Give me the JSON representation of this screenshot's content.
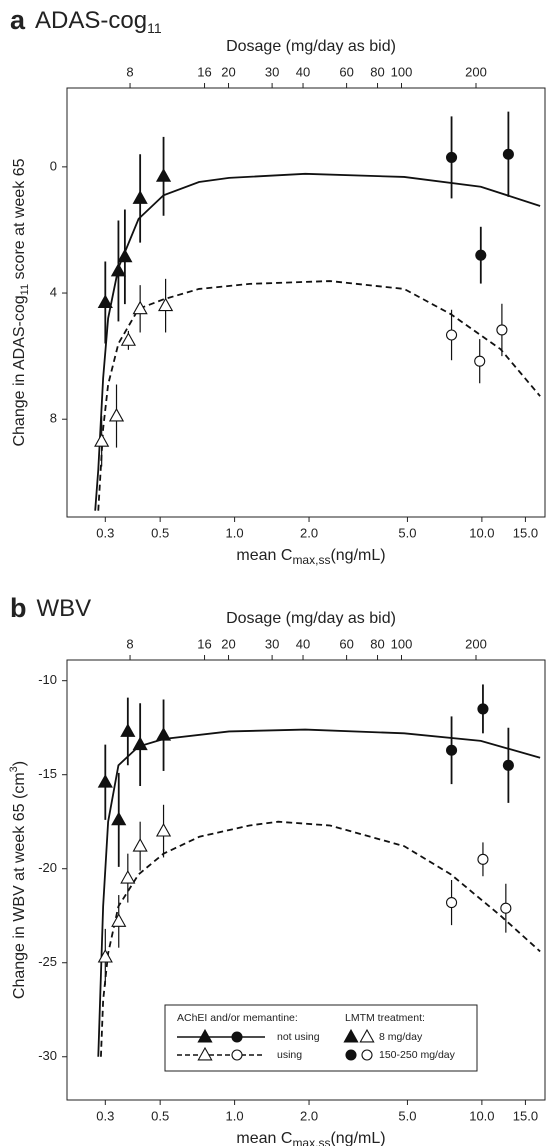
{
  "chart_data": [
    {
      "type": "scatter-curve",
      "panel": "a",
      "title": "ADAS-cog",
      "title_sub": "11",
      "ylabel": [
        "Change in ADAS-cog",
        "11",
        " score at  week 65"
      ],
      "xlabel": [
        "mean C",
        "max,ss",
        "(ng/mL)"
      ],
      "x2label": "Dosage (mg/day as bid)",
      "xscale": "log",
      "xlim": [
        0.21,
        18
      ],
      "xticks": [
        0.3,
        0.5,
        {
          "value": 1,
          "label": "1.0"
        },
        {
          "value": 2,
          "label": "2.0"
        },
        {
          "value": 5,
          "label": "5.0"
        },
        {
          "value": 10,
          "label": "10.0"
        },
        {
          "value": 15,
          "label": "15.0"
        }
      ],
      "x2scale": "log",
      "x2lim": [
        4.45,
        380
      ],
      "x2ticks": [
        8,
        16,
        20,
        30,
        40,
        60,
        80,
        100,
        200
      ],
      "ylim": [
        11.1,
        -2.5
      ],
      "yticks": [
        0,
        4,
        8
      ],
      "y_inverted": true,
      "series": [
        {
          "kind": "curve",
          "dashed": false,
          "x": [
            0.273,
            0.281,
            0.294,
            0.308,
            0.339,
            0.409,
            0.516,
            0.718,
            0.95,
            1.93,
            4.85,
            9.9,
            17.2
          ],
          "values": [
            10.9,
            9.6,
            6.7,
            4.8,
            3.2,
            1.65,
            0.9,
            0.48,
            0.35,
            0.22,
            0.32,
            0.63,
            1.24
          ]
        },
        {
          "kind": "curve",
          "dashed": true,
          "x": [
            0.281,
            0.294,
            0.308,
            0.339,
            0.409,
            0.516,
            0.718,
            1.15,
            2.43,
            4.85,
            7.49,
            11.9,
            17.2
          ],
          "values": [
            10.9,
            8.3,
            6.9,
            5.6,
            4.5,
            4.2,
            3.87,
            3.71,
            3.62,
            3.87,
            4.67,
            5.78,
            7.27
          ]
        },
        {
          "kind": "points",
          "marker": "triangle",
          "filled": true,
          "x": [
            0.3,
            0.339,
            0.36,
            0.415,
            0.516
          ],
          "values": [
            4.3,
            3.3,
            2.85,
            1.0,
            0.3
          ],
          "errors": [
            1.3,
            1.6,
            1.5,
            1.4,
            1.25
          ]
        },
        {
          "kind": "points",
          "marker": "circle",
          "filled": true,
          "x": [
            7.54,
            9.9,
            12.8
          ],
          "values": [
            -0.3,
            2.8,
            -0.4
          ],
          "errors": [
            1.3,
            0.9,
            1.35
          ]
        },
        {
          "kind": "points",
          "marker": "triangle",
          "filled": false,
          "x": [
            0.29,
            0.333,
            0.372,
            0.415,
            0.526
          ],
          "values": [
            8.7,
            7.9,
            5.5,
            4.5,
            4.4
          ],
          "errors": [
            0.8,
            1.0,
            0.3,
            0.75,
            0.85
          ]
        },
        {
          "kind": "points",
          "marker": "circle",
          "filled": false,
          "x": [
            7.54,
            9.8,
            12.05
          ],
          "values": [
            5.33,
            6.16,
            5.17
          ],
          "errors": [
            0.8,
            0.7,
            0.83
          ]
        }
      ]
    },
    {
      "type": "scatter-curve",
      "panel": "b",
      "title": "WBV",
      "ylabel": [
        "Change in WBV at week 65 (cm",
        "3",
        ")"
      ],
      "xlabel": [
        "mean C",
        "max,ss",
        "(ng/mL)"
      ],
      "x2label": "Dosage (mg/day as bid)",
      "xscale": "log",
      "xlim": [
        0.21,
        18
      ],
      "xticks": [
        0.3,
        0.5,
        {
          "value": 1,
          "label": "1.0"
        },
        {
          "value": 2,
          "label": "2.0"
        },
        {
          "value": 5,
          "label": "5.0"
        },
        {
          "value": 10,
          "label": "10.0"
        },
        {
          "value": 15,
          "label": "15.0"
        }
      ],
      "x2scale": "log",
      "x2lim": [
        4.45,
        380
      ],
      "x2ticks": [
        8,
        16,
        20,
        30,
        40,
        60,
        80,
        100,
        200
      ],
      "ylim": [
        -32.3,
        -8.9
      ],
      "yticks": [
        -10,
        -15,
        -20,
        -25,
        -30
      ],
      "series": [
        {
          "kind": "curve",
          "dashed": false,
          "x": [
            0.281,
            0.294,
            0.308,
            0.339,
            0.409,
            0.516,
            0.95,
            1.93,
            4.85,
            9.9,
            17.2
          ],
          "values": [
            -30,
            -22,
            -17.5,
            -14.5,
            -13.5,
            -13.1,
            -12.7,
            -12.6,
            -12.8,
            -13.2,
            -14.1
          ]
        },
        {
          "kind": "curve",
          "dashed": true,
          "x": [
            0.288,
            0.294,
            0.308,
            0.339,
            0.409,
            0.516,
            0.72,
            1.15,
            1.5,
            2.43,
            4.85,
            7.49,
            11.9,
            17.2
          ],
          "values": [
            -30,
            -27,
            -24.5,
            -22,
            -20.3,
            -19.2,
            -18.3,
            -17.7,
            -17.5,
            -17.7,
            -18.8,
            -20.3,
            -22.5,
            -24.4
          ]
        },
        {
          "kind": "points",
          "marker": "triangle",
          "filled": true,
          "x": [
            0.3,
            0.34,
            0.37,
            0.415,
            0.516
          ],
          "values": [
            -15.4,
            -17.4,
            -12.7,
            -13.4,
            -12.9
          ],
          "errors": [
            2,
            2.5,
            1.8,
            2.2,
            1.9
          ]
        },
        {
          "kind": "points",
          "marker": "circle",
          "filled": true,
          "x": [
            7.54,
            10.1,
            12.8
          ],
          "values": [
            -13.7,
            -11.5,
            -14.5
          ],
          "errors": [
            1.8,
            1.3,
            2
          ]
        },
        {
          "kind": "points",
          "marker": "triangle",
          "filled": false,
          "x": [
            0.3,
            0.34,
            0.37,
            0.415,
            0.516
          ],
          "values": [
            -24.7,
            -22.8,
            -20.5,
            -18.8,
            -18
          ],
          "errors": [
            1.5,
            1.4,
            1.3,
            1.3,
            1.4
          ]
        },
        {
          "kind": "points",
          "marker": "circle",
          "filled": false,
          "x": [
            7.54,
            10.1,
            12.5
          ],
          "values": [
            -21.8,
            -19.5,
            -22.1
          ],
          "errors": [
            1.2,
            0.9,
            1.3
          ]
        }
      ],
      "legend": {
        "title_lines": "AChEI and/or memantine:",
        "lines": [
          {
            "name": "not using",
            "dashed": false,
            "filled": true
          },
          {
            "name": "using",
            "dashed": true,
            "filled": false
          }
        ],
        "title_treatments": "LMTM treatment:",
        "treatments": [
          {
            "name": "8 mg/day",
            "marker": "triangle"
          },
          {
            "name": "150-250 mg/day",
            "marker": "circle"
          }
        ]
      }
    }
  ]
}
